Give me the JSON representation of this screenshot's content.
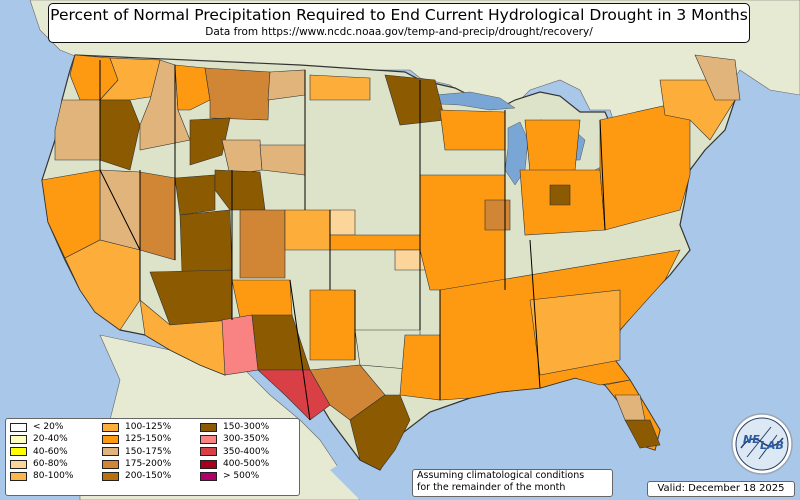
{
  "title": "Percent of Normal Precipitation Required to End Current Hydrological Drought in 3 Months",
  "subtitle": "Data from https://www.ncdc.noaa.gov/temp-and-precip/drought/recovery/",
  "legend": [
    {
      "label": "< 20%",
      "color": "#ffffff"
    },
    {
      "label": "20-40%",
      "color": "#ffffc0"
    },
    {
      "label": "40-60%",
      "color": "#ffff00"
    },
    {
      "label": "60-80%",
      "color": "#fbd59a"
    },
    {
      "label": "80-100%",
      "color": "#fdb84b"
    },
    {
      "label": "100-125%",
      "color": "#fcad3a"
    },
    {
      "label": "125-150%",
      "color": "#fd9a12"
    },
    {
      "label": "150-175%",
      "color": "#e0b47a"
    },
    {
      "label": "175-200%",
      "color": "#d08634"
    },
    {
      "label": "200-150%",
      "color": "#b8700f"
    },
    {
      "label": "150-300%",
      "color": "#8c5a00"
    },
    {
      "label": "300-350%",
      "color": "#f98282"
    },
    {
      "label": "350-400%",
      "color": "#d94045"
    },
    {
      "label": "400-500%",
      "color": "#a8001c"
    },
    {
      "label": "> 500%",
      "color": "#b0006a"
    }
  ],
  "note_line1": "Assuming climatological conditions",
  "note_line2": "for the remainder of the month",
  "valid": "Valid: December 18 2025",
  "logo_text_ne": "NE",
  "logo_text_lab": "LAB",
  "colors": {
    "ocean": "#a9c7e8",
    "land_neutral": "#dde3c8",
    "land_out": "#e9ecd8",
    "lake": "#7aa6d6",
    "pale": "#fbd59a",
    "orange": "#fd9a12",
    "light_orange": "#fcad3a",
    "tan": "#e0b47a",
    "mid_brown": "#d08634",
    "brown": "#8c5a00",
    "pink": "#f98282",
    "red": "#d94045"
  }
}
